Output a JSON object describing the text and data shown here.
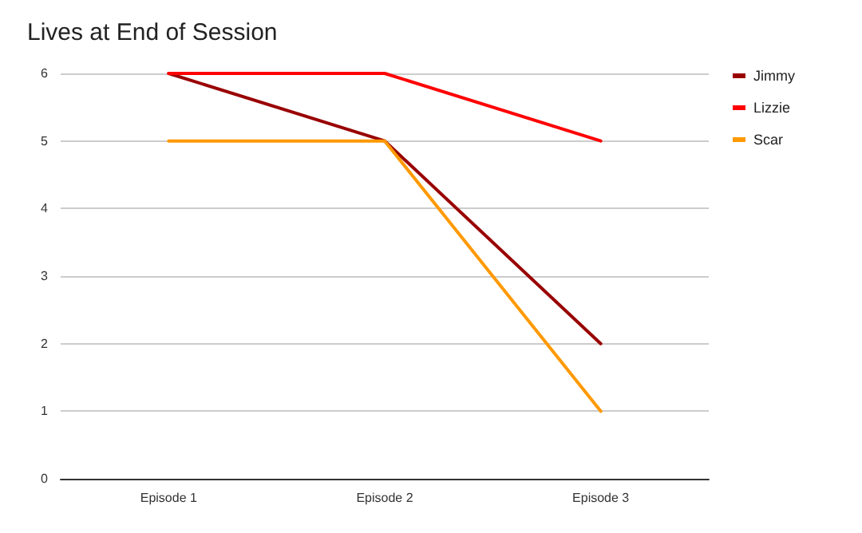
{
  "chart_data": {
    "type": "line",
    "title": "Lives at End of Session",
    "categories": [
      "Episode 1",
      "Episode 2",
      "Episode 3"
    ],
    "series": [
      {
        "name": "Jimmy",
        "color": "#990000",
        "values": [
          6,
          5,
          2
        ]
      },
      {
        "name": "Lizzie",
        "color": "#ff0000",
        "values": [
          6,
          6,
          5
        ]
      },
      {
        "name": "Scar",
        "color": "#ff9900",
        "values": [
          5,
          5,
          1
        ]
      }
    ],
    "ylim": [
      0,
      6
    ],
    "yticks": [
      0,
      1,
      2,
      3,
      4,
      5,
      6
    ],
    "grid": "y",
    "legend": "top right",
    "marker": "none",
    "line_style": "solid"
  }
}
